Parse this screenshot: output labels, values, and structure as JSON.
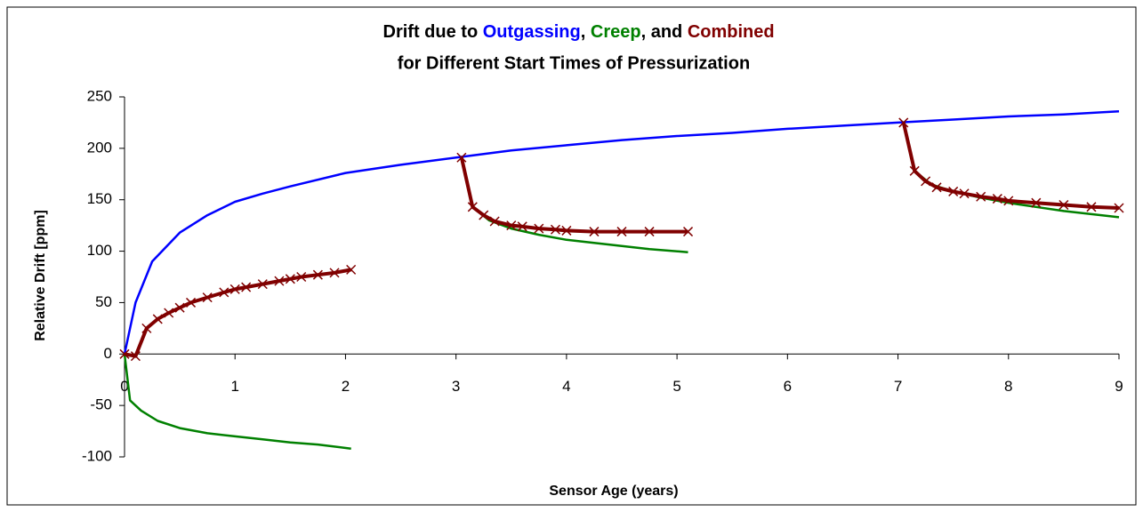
{
  "chart_data": {
    "type": "line",
    "title_joiners": [
      "Drift due to ",
      ", ",
      ", and "
    ],
    "subtitle": "for Different Start Times of Pressurization",
    "x_label": "Sensor Age (years)",
    "y_label": "Relative Drift [ppm]",
    "xlim": [
      0,
      9
    ],
    "ylim": [
      -100,
      250
    ],
    "xticks": [
      0,
      1,
      2,
      3,
      4,
      5,
      6,
      7,
      8,
      9
    ],
    "yticks": [
      -100,
      -50,
      0,
      50,
      100,
      150,
      200,
      250
    ],
    "grid": false,
    "series": [
      {
        "name": "Outgassing",
        "color": "#0000ff",
        "marker": "none",
        "x": [
          0,
          0.1,
          0.25,
          0.5,
          0.75,
          1,
          1.25,
          1.5,
          2,
          2.5,
          3,
          3.5,
          4,
          4.5,
          5,
          5.5,
          6,
          6.5,
          7,
          7.5,
          8,
          8.5,
          9
        ],
        "values": [
          0,
          50,
          90,
          118,
          135,
          148,
          156,
          163,
          176,
          184,
          191,
          198,
          203,
          208,
          212,
          215,
          219,
          222,
          225,
          228,
          231,
          233,
          236
        ]
      },
      {
        "name": "Creep",
        "color": "#008000",
        "marker": "none",
        "x": [
          0,
          0.05,
          0.15,
          0.3,
          0.5,
          0.75,
          1,
          1.25,
          1.5,
          1.75,
          2.05,
          null,
          3.05,
          3.15,
          3.3,
          3.5,
          3.75,
          4,
          4.25,
          4.5,
          4.75,
          5.1,
          null,
          7.05,
          7.15,
          7.3,
          7.5,
          7.75,
          8,
          8.25,
          8.5,
          8.75,
          9
        ],
        "values": [
          0,
          -45,
          -55,
          -65,
          -72,
          -77,
          -80,
          -83,
          -86,
          -88,
          -92,
          null,
          191,
          143,
          130,
          122,
          116,
          111,
          108,
          105,
          102,
          99,
          null,
          225,
          178,
          165,
          158,
          152,
          147,
          143,
          139,
          136,
          133
        ]
      },
      {
        "name": "Combined",
        "color": "#800000",
        "marker": "x",
        "x": [
          0,
          0.1,
          0.2,
          0.3,
          0.4,
          0.5,
          0.6,
          0.75,
          0.9,
          1,
          1.1,
          1.25,
          1.4,
          1.5,
          1.6,
          1.75,
          1.9,
          2.05,
          null,
          3.05,
          3.15,
          3.25,
          3.35,
          3.5,
          3.6,
          3.75,
          3.9,
          4,
          4.25,
          4.5,
          4.75,
          5.1,
          null,
          7.05,
          7.15,
          7.25,
          7.35,
          7.5,
          7.6,
          7.75,
          7.9,
          8,
          8.25,
          8.5,
          8.75,
          9
        ],
        "values": [
          0,
          -2,
          25,
          34,
          40,
          45,
          50,
          55,
          60,
          63,
          65,
          68,
          71,
          73,
          75,
          77,
          79,
          82,
          null,
          191,
          143,
          135,
          129,
          125,
          124,
          122,
          121,
          120,
          119,
          119,
          119,
          119,
          null,
          225,
          178,
          168,
          162,
          158,
          156,
          153,
          151,
          149,
          147,
          145,
          143,
          142
        ]
      }
    ]
  }
}
